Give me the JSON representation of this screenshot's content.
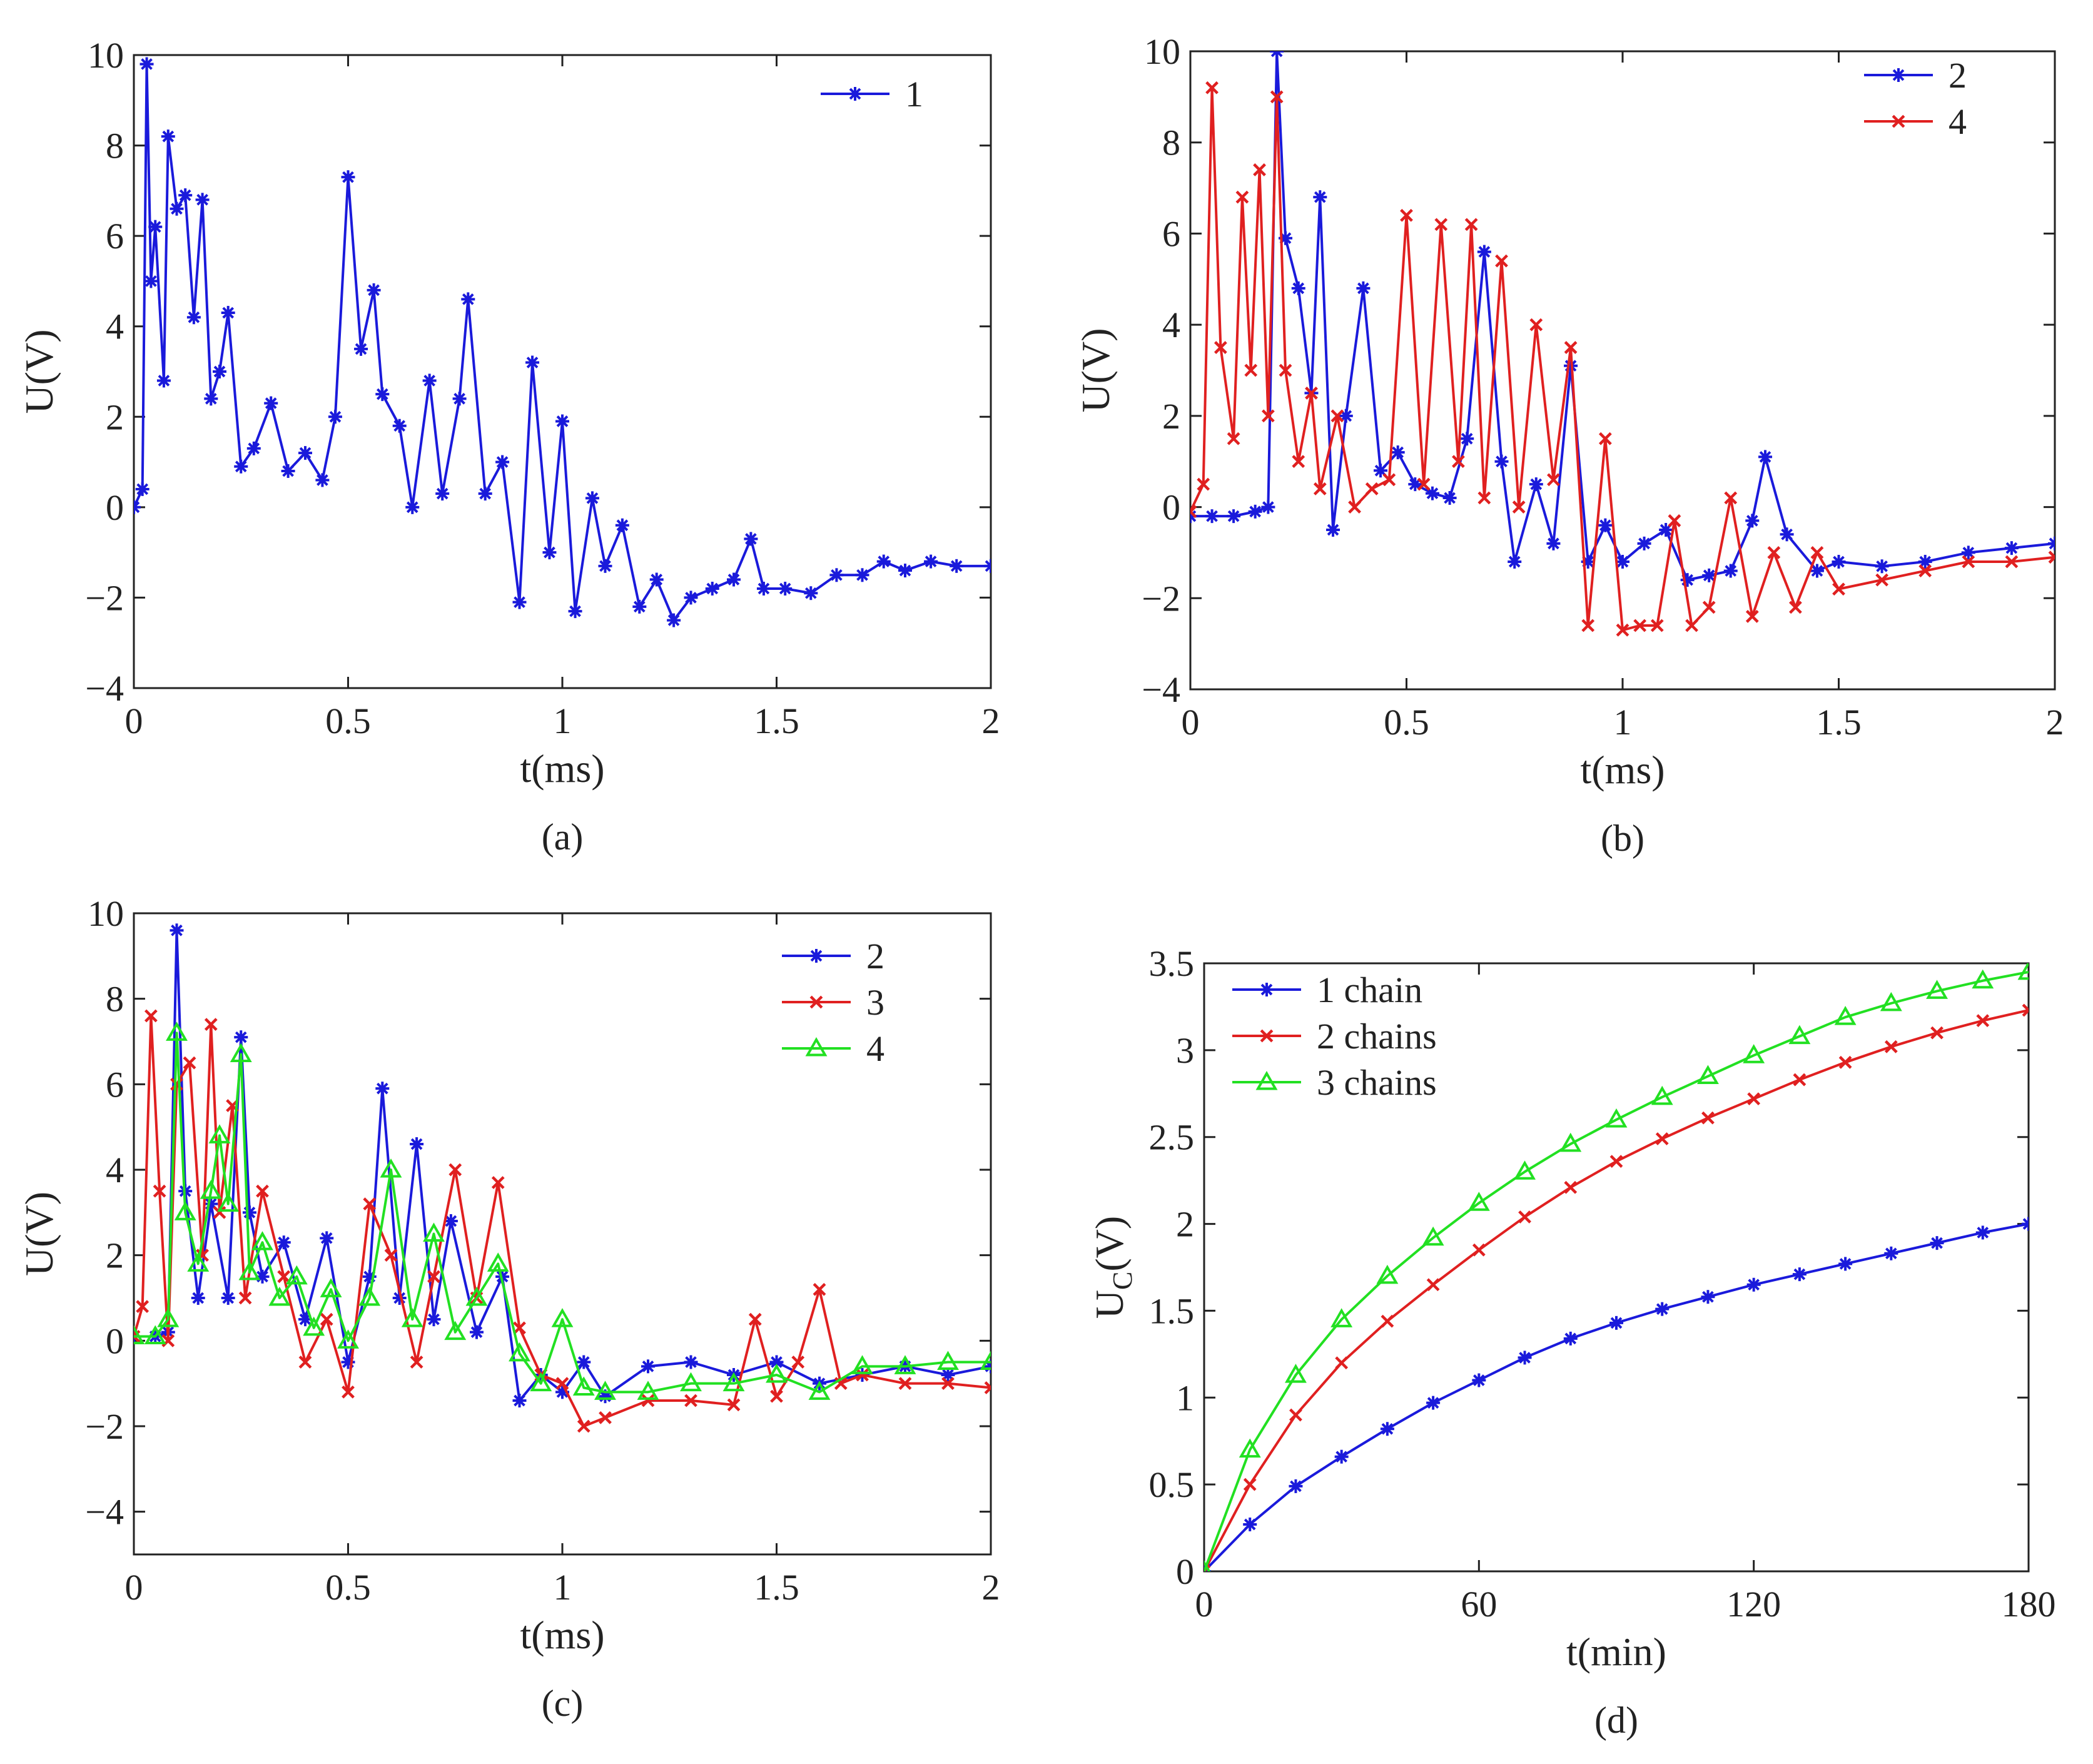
{
  "chart_data": [
    {
      "id": "a",
      "type": "line",
      "panel_label": "(a)",
      "xlabel": "t(ms)",
      "ylabel": "U(V)",
      "xlim": [
        0,
        2
      ],
      "ylim": [
        -4,
        10
      ],
      "xticks": [
        0,
        0.5,
        1,
        1.5,
        2
      ],
      "xtick_labels": [
        "0",
        "0.5",
        "1",
        "1.5",
        "2"
      ],
      "yticks": [
        -4,
        -2,
        0,
        2,
        4,
        6,
        8,
        10
      ],
      "ytick_labels": [
        "−4",
        "−2",
        "0",
        "2",
        "4",
        "6",
        "8",
        "10"
      ],
      "legend_position": "top-right",
      "series": [
        {
          "name": "1",
          "color": "#1a1adb",
          "marker": "asterisk",
          "x": [
            0,
            0.02,
            0.03,
            0.04,
            0.05,
            0.07,
            0.08,
            0.1,
            0.12,
            0.14,
            0.16,
            0.18,
            0.2,
            0.22,
            0.25,
            0.28,
            0.32,
            0.36,
            0.4,
            0.44,
            0.47,
            0.5,
            0.53,
            0.56,
            0.58,
            0.62,
            0.65,
            0.69,
            0.72,
            0.76,
            0.78,
            0.82,
            0.86,
            0.9,
            0.93,
            0.97,
            1.0,
            1.03,
            1.07,
            1.1,
            1.14,
            1.18,
            1.22,
            1.26,
            1.3,
            1.35,
            1.4,
            1.44,
            1.47,
            1.52,
            1.58,
            1.64,
            1.7,
            1.75,
            1.8,
            1.86,
            1.92,
            2.0
          ],
          "y": [
            0,
            0.4,
            9.8,
            5.0,
            6.2,
            2.8,
            8.2,
            6.6,
            6.9,
            4.2,
            6.8,
            2.4,
            3.0,
            4.3,
            0.9,
            1.3,
            2.3,
            0.8,
            1.2,
            0.6,
            2.0,
            7.3,
            3.5,
            4.8,
            2.5,
            1.8,
            0.0,
            2.8,
            0.3,
            2.4,
            4.6,
            0.3,
            1.0,
            -2.1,
            3.2,
            -1.0,
            1.9,
            -2.3,
            0.2,
            -1.3,
            -0.4,
            -2.2,
            -1.6,
            -2.5,
            -2.0,
            -1.8,
            -1.6,
            -0.7,
            -1.8,
            -1.8,
            -1.9,
            -1.5,
            -1.5,
            -1.2,
            -1.4,
            -1.2,
            -1.3,
            -1.3
          ]
        }
      ]
    },
    {
      "id": "b",
      "type": "line",
      "panel_label": "(b)",
      "xlabel": "t(ms)",
      "ylabel": "U(V)",
      "xlim": [
        0,
        2
      ],
      "ylim": [
        -4,
        10
      ],
      "xticks": [
        0,
        0.5,
        1,
        1.5,
        2
      ],
      "xtick_labels": [
        "0",
        "0.5",
        "1",
        "1.5",
        "2"
      ],
      "yticks": [
        -4,
        -2,
        0,
        2,
        4,
        6,
        8,
        10
      ],
      "ytick_labels": [
        "−4",
        "−2",
        "0",
        "2",
        "4",
        "6",
        "8",
        "10"
      ],
      "legend_position": "top-right",
      "series": [
        {
          "name": "2",
          "color": "#1a1adb",
          "marker": "asterisk",
          "x": [
            0,
            0.05,
            0.1,
            0.15,
            0.18,
            0.2,
            0.22,
            0.25,
            0.28,
            0.3,
            0.33,
            0.36,
            0.4,
            0.44,
            0.48,
            0.52,
            0.56,
            0.6,
            0.64,
            0.68,
            0.72,
            0.75,
            0.8,
            0.84,
            0.88,
            0.92,
            0.96,
            1.0,
            1.05,
            1.1,
            1.15,
            1.2,
            1.25,
            1.3,
            1.33,
            1.38,
            1.45,
            1.5,
            1.6,
            1.7,
            1.8,
            1.9,
            2.0
          ],
          "y": [
            -0.2,
            -0.2,
            -0.2,
            -0.1,
            0.0,
            10.0,
            5.9,
            4.8,
            2.5,
            6.8,
            -0.5,
            2.0,
            4.8,
            0.8,
            1.2,
            0.5,
            0.3,
            0.2,
            1.5,
            5.6,
            1.0,
            -1.2,
            0.5,
            -0.8,
            3.1,
            -1.2,
            -0.4,
            -1.2,
            -0.8,
            -0.5,
            -1.6,
            -1.5,
            -1.4,
            -0.3,
            1.1,
            -0.6,
            -1.4,
            -1.2,
            -1.3,
            -1.2,
            -1.0,
            -0.9,
            -0.8
          ]
        },
        {
          "name": "4",
          "color": "#e02020",
          "marker": "cross",
          "x": [
            0,
            0.03,
            0.05,
            0.07,
            0.1,
            0.12,
            0.14,
            0.16,
            0.18,
            0.2,
            0.22,
            0.25,
            0.28,
            0.3,
            0.34,
            0.38,
            0.42,
            0.46,
            0.5,
            0.54,
            0.58,
            0.62,
            0.65,
            0.68,
            0.72,
            0.76,
            0.8,
            0.84,
            0.88,
            0.92,
            0.96,
            1.0,
            1.04,
            1.08,
            1.12,
            1.16,
            1.2,
            1.25,
            1.3,
            1.35,
            1.4,
            1.45,
            1.5,
            1.6,
            1.7,
            1.8,
            1.9,
            2.0
          ],
          "y": [
            -0.1,
            0.5,
            9.2,
            3.5,
            1.5,
            6.8,
            3.0,
            7.4,
            2.0,
            9.0,
            3.0,
            1.0,
            2.5,
            0.4,
            2.0,
            0.0,
            0.4,
            0.6,
            6.4,
            0.5,
            6.2,
            1.0,
            6.2,
            0.2,
            5.4,
            0.0,
            4.0,
            0.6,
            3.5,
            -2.6,
            1.5,
            -2.7,
            -2.6,
            -2.6,
            -0.3,
            -2.6,
            -2.2,
            0.2,
            -2.4,
            -1.0,
            -2.2,
            -1.0,
            -1.8,
            -1.6,
            -1.4,
            -1.2,
            -1.2,
            -1.1
          ]
        }
      ]
    },
    {
      "id": "c",
      "type": "line",
      "panel_label": "(c)",
      "xlabel": "t(ms)",
      "ylabel": "U(V)",
      "xlim": [
        0,
        2
      ],
      "ylim": [
        -5,
        10
      ],
      "xticks": [
        0,
        0.5,
        1,
        1.5,
        2
      ],
      "xtick_labels": [
        "0",
        "0.5",
        "1",
        "1.5",
        "2"
      ],
      "yticks": [
        -4,
        -2,
        0,
        2,
        4,
        6,
        8,
        10
      ],
      "ytick_labels": [
        "−4",
        "−2",
        "0",
        "2",
        "4",
        "6",
        "8",
        "10"
      ],
      "legend_position": "top-right",
      "series": [
        {
          "name": "2",
          "color": "#1a1adb",
          "marker": "asterisk",
          "x": [
            0,
            0.05,
            0.08,
            0.1,
            0.12,
            0.15,
            0.18,
            0.22,
            0.25,
            0.27,
            0.3,
            0.35,
            0.4,
            0.45,
            0.5,
            0.55,
            0.58,
            0.62,
            0.66,
            0.7,
            0.74,
            0.8,
            0.86,
            0.9,
            0.95,
            1.0,
            1.05,
            1.1,
            1.2,
            1.3,
            1.4,
            1.5,
            1.6,
            1.7,
            1.8,
            1.9,
            2.0
          ],
          "y": [
            0.1,
            0.1,
            0.2,
            9.6,
            3.5,
            1.0,
            3.2,
            1.0,
            7.1,
            3.0,
            1.5,
            2.3,
            0.5,
            2.4,
            -0.5,
            1.5,
            5.9,
            1.0,
            4.6,
            0.5,
            2.8,
            0.2,
            1.5,
            -1.4,
            -0.8,
            -1.2,
            -0.5,
            -1.3,
            -0.6,
            -0.5,
            -0.8,
            -0.5,
            -1.0,
            -0.8,
            -0.6,
            -0.8,
            -0.6
          ]
        },
        {
          "name": "3",
          "color": "#e02020",
          "marker": "cross",
          "x": [
            0,
            0.02,
            0.04,
            0.06,
            0.08,
            0.1,
            0.13,
            0.16,
            0.18,
            0.2,
            0.23,
            0.26,
            0.3,
            0.35,
            0.4,
            0.45,
            0.5,
            0.55,
            0.6,
            0.66,
            0.7,
            0.75,
            0.8,
            0.85,
            0.9,
            0.95,
            1.0,
            1.05,
            1.1,
            1.2,
            1.3,
            1.4,
            1.45,
            1.5,
            1.55,
            1.6,
            1.65,
            1.7,
            1.8,
            1.9,
            2.0
          ],
          "y": [
            0.1,
            0.8,
            7.6,
            3.5,
            0.0,
            6.0,
            6.5,
            2.0,
            7.4,
            3.0,
            5.5,
            1.0,
            3.5,
            1.5,
            -0.5,
            0.5,
            -1.2,
            3.2,
            2.0,
            -0.5,
            1.5,
            4.0,
            1.0,
            3.7,
            0.3,
            -0.8,
            -1.0,
            -2.0,
            -1.8,
            -1.4,
            -1.4,
            -1.5,
            0.5,
            -1.3,
            -0.5,
            1.2,
            -1.0,
            -0.8,
            -1.0,
            -1.0,
            -1.1
          ]
        },
        {
          "name": "4",
          "color": "#22e022",
          "marker": "triangle",
          "x": [
            0,
            0.05,
            0.08,
            0.1,
            0.12,
            0.15,
            0.18,
            0.2,
            0.22,
            0.25,
            0.27,
            0.3,
            0.34,
            0.38,
            0.42,
            0.46,
            0.5,
            0.55,
            0.6,
            0.65,
            0.7,
            0.75,
            0.8,
            0.85,
            0.9,
            0.95,
            1.0,
            1.05,
            1.1,
            1.2,
            1.3,
            1.4,
            1.5,
            1.6,
            1.7,
            1.8,
            1.9,
            2.0
          ],
          "y": [
            0.1,
            0.1,
            0.5,
            7.2,
            3.0,
            1.8,
            3.5,
            4.8,
            3.2,
            6.7,
            1.6,
            2.3,
            1.0,
            1.5,
            0.3,
            1.2,
            0.0,
            1.0,
            4.0,
            0.5,
            2.5,
            0.2,
            1.0,
            1.8,
            -0.3,
            -1.0,
            0.5,
            -1.1,
            -1.2,
            -1.2,
            -1.0,
            -1.0,
            -0.8,
            -1.2,
            -0.6,
            -0.6,
            -0.5,
            -0.5
          ]
        }
      ]
    },
    {
      "id": "d",
      "type": "line",
      "panel_label": "(d)",
      "xlabel": "t(min)",
      "ylabel_main": "U",
      "ylabel_sub": "C",
      "ylabel_tail": "(V)",
      "xlim": [
        0,
        180
      ],
      "ylim": [
        0,
        3.5
      ],
      "xticks": [
        0,
        60,
        120,
        180
      ],
      "xtick_labels": [
        "0",
        "60",
        "120",
        "180"
      ],
      "yticks": [
        0,
        0.5,
        1,
        1.5,
        2,
        2.5,
        3,
        3.5
      ],
      "ytick_labels": [
        "0",
        "0.5",
        "1",
        "1.5",
        "2",
        "2.5",
        "3",
        "3.5"
      ],
      "legend_position": "top-left",
      "series": [
        {
          "name": "1 chain",
          "color": "#1a1adb",
          "marker": "asterisk",
          "x": [
            0,
            10,
            20,
            30,
            40,
            50,
            60,
            70,
            80,
            90,
            100,
            110,
            120,
            130,
            140,
            150,
            160,
            170,
            180
          ],
          "y": [
            0,
            0.27,
            0.49,
            0.66,
            0.82,
            0.97,
            1.1,
            1.23,
            1.34,
            1.43,
            1.51,
            1.58,
            1.65,
            1.71,
            1.77,
            1.83,
            1.89,
            1.95,
            2.0
          ]
        },
        {
          "name": "2 chains",
          "color": "#e02020",
          "marker": "cross",
          "x": [
            0,
            10,
            20,
            30,
            40,
            50,
            60,
            70,
            80,
            90,
            100,
            110,
            120,
            130,
            140,
            150,
            160,
            170,
            180
          ],
          "y": [
            0,
            0.5,
            0.9,
            1.2,
            1.44,
            1.65,
            1.85,
            2.04,
            2.21,
            2.36,
            2.49,
            2.61,
            2.72,
            2.83,
            2.93,
            3.02,
            3.1,
            3.17,
            3.23
          ]
        },
        {
          "name": "3 chains",
          "color": "#22e022",
          "marker": "triangle",
          "x": [
            0,
            10,
            20,
            30,
            40,
            50,
            60,
            70,
            80,
            90,
            100,
            110,
            120,
            130,
            140,
            150,
            160,
            170,
            180
          ],
          "y": [
            0,
            0.7,
            1.13,
            1.45,
            1.7,
            1.92,
            2.12,
            2.3,
            2.46,
            2.6,
            2.73,
            2.85,
            2.97,
            3.08,
            3.19,
            3.27,
            3.34,
            3.4,
            3.45
          ]
        }
      ]
    }
  ]
}
